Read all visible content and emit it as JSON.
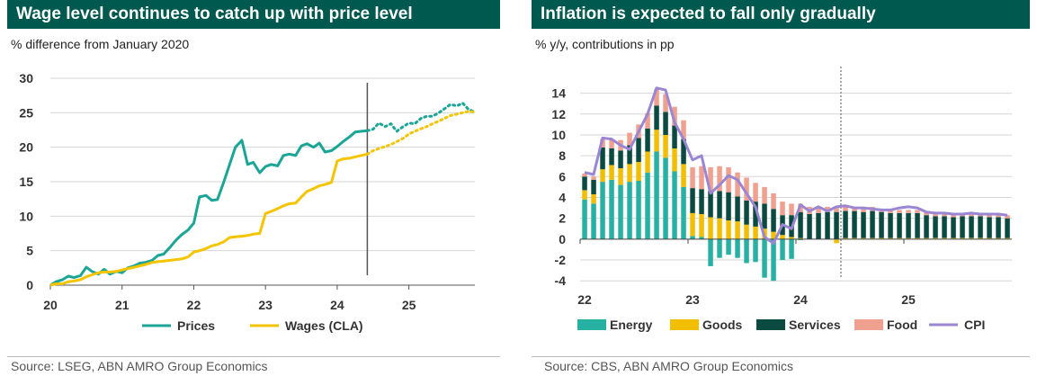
{
  "charts": {
    "left": {
      "title": "Wage level continues to catch up with price level",
      "subtitle": "% difference from January 2020",
      "source": "Source: LSEG, ABN AMRO Group Economics"
    },
    "right": {
      "title": "Inflation is expected to fall only gradually",
      "subtitle": "% y/y, contributions in pp",
      "source": "Source: CBS, ABN AMRO Group Economics"
    }
  },
  "colors": {
    "title_bg": "#00594f",
    "prices": "#1aa596",
    "wages": "#f5c400",
    "energy": "#26b1a3",
    "goods": "#f2bf00",
    "services": "#0a4a40",
    "food": "#f0a08f",
    "cpi": "#9b86d3"
  },
  "chart_data": [
    {
      "type": "line",
      "title": "Wage level continues to catch up with price level",
      "ylabel": "% difference from January 2020",
      "ylim": [
        0,
        30
      ],
      "yticks": [
        "0",
        "5",
        "10",
        "15",
        "20",
        "25",
        "30"
      ],
      "xlim": [
        2020,
        2025.92
      ],
      "xticks": [
        "20",
        "21",
        "22",
        "23",
        "24",
        "25"
      ],
      "forecast_start": 2024.42,
      "legend": [
        "Prices",
        "Wages (CLA)"
      ],
      "grid": true,
      "legend_position": "bottom",
      "series": [
        {
          "name": "Prices",
          "x": [
            2020.0,
            2020.08,
            2020.17,
            2020.25,
            2020.33,
            2020.42,
            2020.5,
            2020.58,
            2020.67,
            2020.75,
            2020.83,
            2020.92,
            2021.0,
            2021.08,
            2021.17,
            2021.25,
            2021.33,
            2021.42,
            2021.5,
            2021.58,
            2021.67,
            2021.75,
            2021.83,
            2021.92,
            2022.0,
            2022.08,
            2022.17,
            2022.25,
            2022.33,
            2022.42,
            2022.5,
            2022.58,
            2022.67,
            2022.75,
            2022.83,
            2022.92,
            2023.0,
            2023.08,
            2023.17,
            2023.25,
            2023.33,
            2023.42,
            2023.5,
            2023.58,
            2023.67,
            2023.75,
            2023.83,
            2023.92,
            2024.0,
            2024.08,
            2024.17,
            2024.25,
            2024.33,
            2024.42
          ],
          "values": [
            0,
            0.5,
            0.8,
            1.3,
            1.1,
            1.4,
            2.6,
            2.0,
            1.6,
            2.3,
            1.6,
            2.0,
            1.8,
            2.5,
            2.8,
            3.2,
            3.3,
            3.6,
            4.3,
            4.5,
            5.5,
            6.5,
            7.3,
            8.0,
            9.0,
            12.8,
            13.0,
            12.3,
            12.4,
            15.0,
            17.5,
            20.0,
            21.0,
            17.5,
            17.8,
            16.3,
            17.2,
            17.5,
            17.3,
            18.8,
            19.0,
            18.8,
            20.2,
            20.5,
            20.0,
            20.6,
            19.3,
            19.5,
            20.1,
            20.8,
            21.5,
            22.2,
            22.3,
            22.4
          ]
        },
        {
          "name": "Prices (forecast)",
          "x": [
            2024.42,
            2024.5,
            2024.58,
            2024.67,
            2024.75,
            2024.83,
            2024.92,
            2025.0,
            2025.08,
            2025.17,
            2025.25,
            2025.33,
            2025.42,
            2025.5,
            2025.58,
            2025.67,
            2025.75,
            2025.83,
            2025.92
          ],
          "values": [
            22.4,
            22.6,
            23.5,
            23.0,
            23.4,
            22.3,
            23.0,
            23.5,
            23.4,
            24.2,
            24.5,
            24.5,
            25.0,
            25.6,
            26.2,
            26.0,
            26.4,
            25.5,
            25.1
          ]
        },
        {
          "name": "Wages (CLA)",
          "x": [
            2020.0,
            2020.08,
            2020.17,
            2020.25,
            2020.33,
            2020.42,
            2020.5,
            2020.58,
            2020.67,
            2020.75,
            2020.83,
            2020.92,
            2021.0,
            2021.08,
            2021.17,
            2021.25,
            2021.33,
            2021.42,
            2021.5,
            2021.58,
            2021.67,
            2021.75,
            2021.83,
            2021.92,
            2022.0,
            2022.08,
            2022.17,
            2022.25,
            2022.33,
            2022.42,
            2022.5,
            2022.58,
            2022.67,
            2022.75,
            2022.83,
            2022.92,
            2023.0,
            2023.08,
            2023.17,
            2023.25,
            2023.33,
            2023.42,
            2023.5,
            2023.58,
            2023.67,
            2023.75,
            2023.83,
            2023.92,
            2024.0,
            2024.08,
            2024.17,
            2024.25,
            2024.33,
            2024.42
          ],
          "values": [
            0,
            0.2,
            0.2,
            0.5,
            0.6,
            0.8,
            1.2,
            1.5,
            1.8,
            1.9,
            1.9,
            2.0,
            2.2,
            2.4,
            2.6,
            2.8,
            3.0,
            3.3,
            3.4,
            3.5,
            3.6,
            3.7,
            3.8,
            4.1,
            4.8,
            5.0,
            5.3,
            5.7,
            5.9,
            6.3,
            6.9,
            7.0,
            7.1,
            7.2,
            7.4,
            7.5,
            10.4,
            10.7,
            11.1,
            11.5,
            11.8,
            11.9,
            12.8,
            13.6,
            14.0,
            14.4,
            14.6,
            14.9,
            18.0,
            18.3,
            18.4,
            18.6,
            18.8,
            19.0
          ]
        },
        {
          "name": "Wages (CLA) (forecast)",
          "x": [
            2024.42,
            2024.5,
            2024.58,
            2024.67,
            2024.75,
            2024.83,
            2024.92,
            2025.0,
            2025.08,
            2025.17,
            2025.25,
            2025.33,
            2025.42,
            2025.5,
            2025.58,
            2025.67,
            2025.75,
            2025.83,
            2025.92
          ],
          "values": [
            19.0,
            19.5,
            19.8,
            20.1,
            20.4,
            20.8,
            21.3,
            21.9,
            22.3,
            22.7,
            23.0,
            23.4,
            23.8,
            24.2,
            24.6,
            24.8,
            25.0,
            25.2,
            25.1
          ]
        }
      ]
    },
    {
      "type": "bar",
      "subtype": "stacked bar with line",
      "title": "Inflation is expected to fall only gradually",
      "ylabel": "% y/y, contributions in pp",
      "ylim": [
        -4.5,
        15
      ],
      "yticks": [
        "-4",
        "-2",
        "0",
        "2",
        "4",
        "6",
        "8",
        "10",
        "12",
        "14"
      ],
      "xticks": [
        "22",
        "23",
        "24",
        "25"
      ],
      "start": "2022-01",
      "forecast_start": "2024-06",
      "legend": [
        "Energy",
        "Goods",
        "Services",
        "Food",
        "CPI"
      ],
      "grid": true,
      "legend_position": "bottom",
      "series": [
        {
          "name": "Energy",
          "values": [
            3.8,
            3.4,
            5.5,
            5.7,
            5.2,
            5.5,
            5.6,
            6.4,
            8.4,
            7.8,
            6.5,
            5.0,
            0.3,
            0.2,
            -2.6,
            -1.8,
            -1.5,
            -1.8,
            -2.3,
            -2.2,
            -3.7,
            -4.0,
            -2.0,
            -1.9,
            -0.1,
            0.0,
            0.0,
            0.0,
            0.0,
            0.0,
            0.0,
            0.0,
            0.0,
            0.0,
            0.0,
            0.0,
            0.0,
            0.0,
            0.0,
            0.0,
            0.0,
            0.0,
            0.0,
            0.0,
            0.0,
            0.0,
            0.0,
            0.0
          ]
        },
        {
          "name": "Goods",
          "values": [
            0.9,
            0.9,
            1.2,
            1.4,
            1.6,
            1.7,
            1.8,
            2.0,
            2.1,
            2.2,
            2.2,
            2.2,
            2.2,
            2.2,
            2.1,
            2.0,
            1.8,
            1.7,
            1.4,
            1.2,
            1.0,
            0.7,
            0.4,
            0.2,
            0.1,
            0.0,
            0.0,
            0.0,
            -0.4,
            0.1,
            0.1,
            0.1,
            0.1,
            0.1,
            0.1,
            0.1,
            0.1,
            0.1,
            0.1,
            0.1,
            0.1,
            0.1,
            0.1,
            0.1,
            0.1,
            0.1,
            0.1,
            0.1
          ]
        },
        {
          "name": "Services",
          "values": [
            1.3,
            1.4,
            2.1,
            1.6,
            1.7,
            1.8,
            2.3,
            2.2,
            2.3,
            2.2,
            2.2,
            2.4,
            2.4,
            2.4,
            2.5,
            2.6,
            2.7,
            2.4,
            2.3,
            2.4,
            2.4,
            2.2,
            1.9,
            2.1,
            2.5,
            2.4,
            2.5,
            2.6,
            2.6,
            2.6,
            2.6,
            2.5,
            2.6,
            2.5,
            2.4,
            2.4,
            2.4,
            2.4,
            2.2,
            2.1,
            2.1,
            2.0,
            2.1,
            2.1,
            2.1,
            2.0,
            2.0,
            1.9
          ]
        },
        {
          "name": "Food",
          "values": [
            0.3,
            0.3,
            0.8,
            0.9,
            1.0,
            1.2,
            1.3,
            1.5,
            1.6,
            1.7,
            1.8,
            1.8,
            2.0,
            2.2,
            2.3,
            2.4,
            2.4,
            2.3,
            2.2,
            1.8,
            1.6,
            1.5,
            1.3,
            1.1,
            0.8,
            0.7,
            0.6,
            0.5,
            0.4,
            0.4,
            0.3,
            0.3,
            0.4,
            0.3,
            0.3,
            0.3,
            0.3,
            0.3,
            0.3,
            0.3,
            0.3,
            0.3,
            0.3,
            0.3,
            0.3,
            0.3,
            0.3,
            0.3
          ]
        },
        {
          "name": "CPI",
          "values": [
            6.4,
            6.2,
            9.7,
            9.6,
            9.0,
            8.6,
            10.3,
            12.0,
            14.5,
            14.3,
            11.2,
            9.6,
            7.6,
            8.0,
            4.4,
            5.2,
            6.1,
            5.7,
            4.4,
            3.1,
            0.2,
            -0.4,
            1.4,
            1.0,
            3.3,
            2.7,
            3.1,
            2.7,
            3.1,
            3.2,
            3.0,
            3.0,
            2.9,
            2.8,
            2.8,
            3.0,
            3.1,
            3.0,
            2.6,
            2.5,
            2.5,
            2.4,
            2.4,
            2.5,
            2.4,
            2.4,
            2.4,
            2.3
          ]
        }
      ]
    }
  ]
}
